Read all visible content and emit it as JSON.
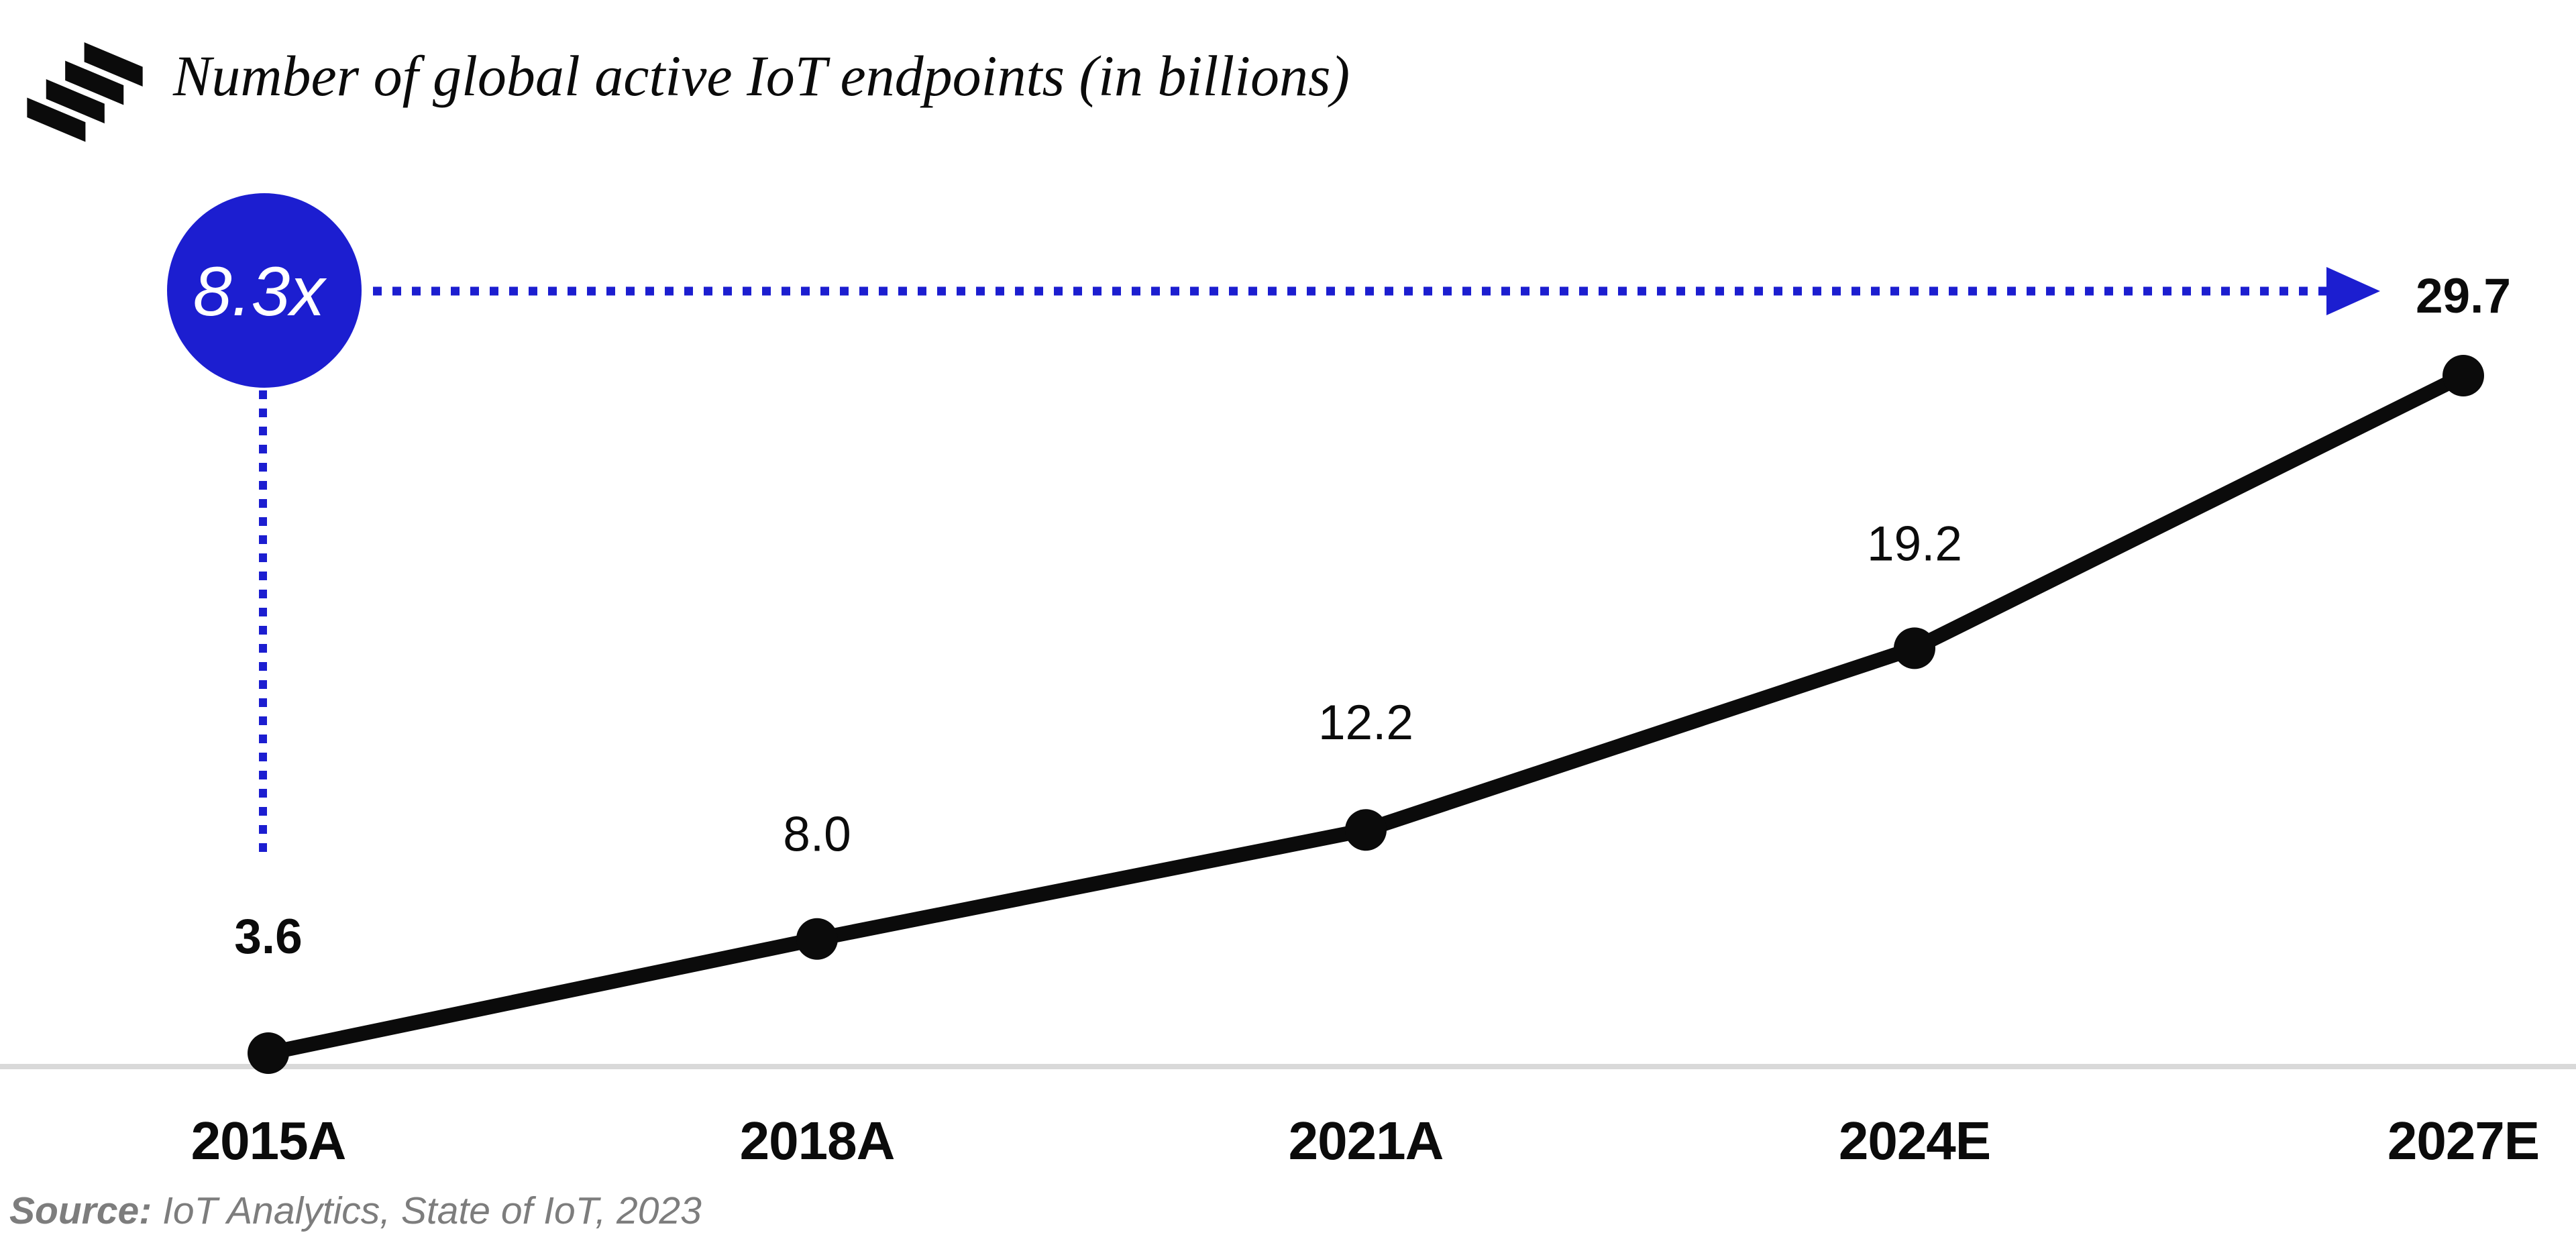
{
  "header": {
    "title": "Number of global active IoT endpoints (in billions)",
    "logo": "iot-analytics-logo"
  },
  "chart_data": {
    "type": "line",
    "title": "Number of global active IoT endpoints (in billions)",
    "categories": [
      "2015A",
      "2018A",
      "2021A",
      "2024E",
      "2027E"
    ],
    "values": [
      3.6,
      8.0,
      12.2,
      19.2,
      29.7
    ],
    "value_labels": [
      "3.6",
      "8.0",
      "12.2",
      "19.2",
      "29.7"
    ],
    "emphasized_labels": [
      true,
      false,
      false,
      false,
      true
    ],
    "xlabel": "",
    "ylabel": "",
    "ylim": [
      3.6,
      29.7
    ],
    "grid": false,
    "legend": false,
    "annotation": {
      "label": "8.3x",
      "from_category": "2015A",
      "to_category": "2027E"
    }
  },
  "source": {
    "prefix": "Source:",
    "text": " IoT Analytics, State of IoT, 2023"
  },
  "colors": {
    "accent_blue": "#1c1ed0",
    "ink_black": "#0b0b0b",
    "axis_gray": "#d9d9d9",
    "source_gray": "#7d7d7d",
    "annotation_text": "#ffffff",
    "background": "#ffffff"
  }
}
